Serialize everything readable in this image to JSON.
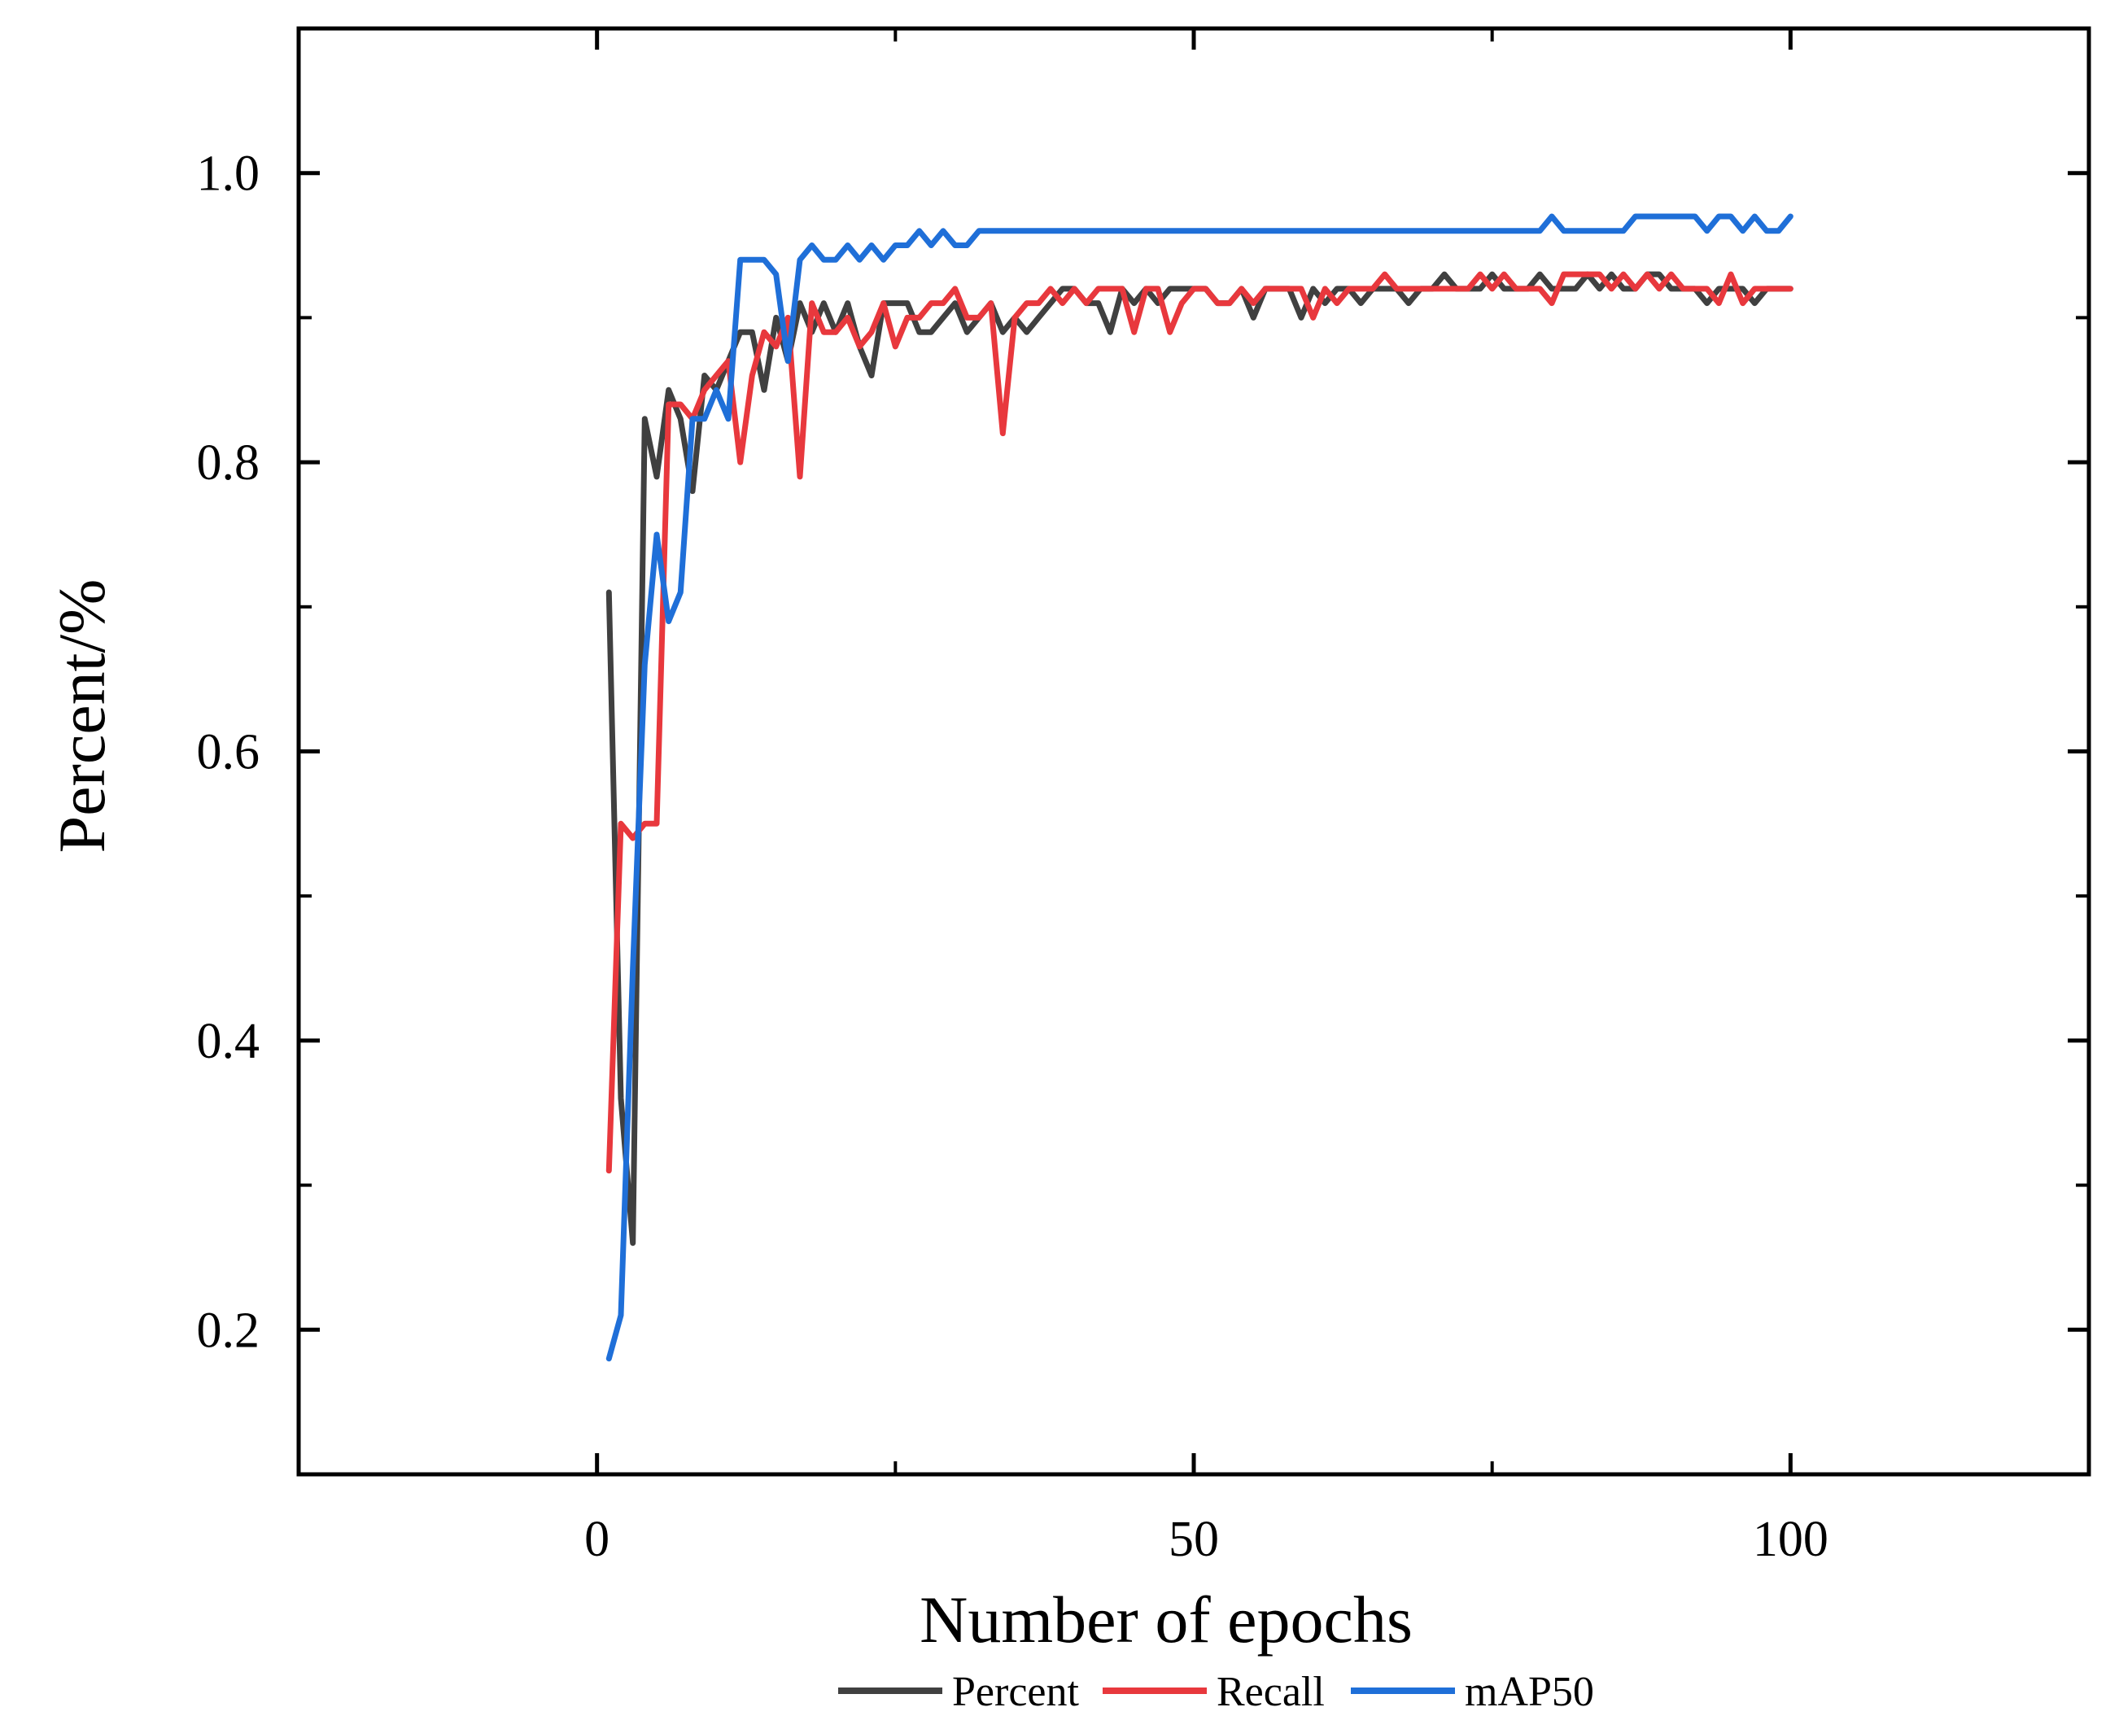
{
  "chart_data": {
    "type": "line",
    "xlabel": "Number of epochs",
    "ylabel": "Percent/%",
    "xlim": [
      -25,
      125
    ],
    "ylim": [
      0.1,
      1.1
    ],
    "x_ticks_labeled": [
      0,
      50,
      100
    ],
    "x_tick_labels": [
      "0",
      "50",
      "100"
    ],
    "x_ticks_minor": [
      25,
      75
    ],
    "y_ticks_labeled": [
      0.2,
      0.4,
      0.6,
      0.8,
      1.0
    ],
    "y_tick_labels": [
      "0.2",
      "0.4",
      "0.6",
      "0.8",
      "1.0"
    ],
    "y_ticks_minor": [
      0.3,
      0.5,
      0.7,
      0.9
    ],
    "grid": false,
    "legend_position": "bottom-center",
    "x": [
      1,
      2,
      3,
      4,
      5,
      6,
      7,
      8,
      9,
      10,
      11,
      12,
      13,
      14,
      15,
      16,
      17,
      18,
      19,
      20,
      21,
      22,
      23,
      24,
      25,
      26,
      27,
      28,
      29,
      30,
      31,
      32,
      33,
      34,
      35,
      36,
      37,
      38,
      39,
      40,
      41,
      42,
      43,
      44,
      45,
      46,
      47,
      48,
      49,
      50,
      51,
      52,
      53,
      54,
      55,
      56,
      57,
      58,
      59,
      60,
      61,
      62,
      63,
      64,
      65,
      66,
      67,
      68,
      69,
      70,
      71,
      72,
      73,
      74,
      75,
      76,
      77,
      78,
      79,
      80,
      81,
      82,
      83,
      84,
      85,
      86,
      87,
      88,
      89,
      90,
      91,
      92,
      93,
      94,
      95,
      96,
      97,
      98,
      99,
      100
    ],
    "series": [
      {
        "name": "Percent",
        "color": "#404040",
        "values": [
          0.71,
          0.36,
          0.26,
          0.83,
          0.79,
          0.85,
          0.83,
          0.78,
          0.86,
          0.85,
          0.87,
          0.89,
          0.89,
          0.85,
          0.9,
          0.87,
          0.91,
          0.89,
          0.91,
          0.89,
          0.91,
          0.88,
          0.86,
          0.91,
          0.91,
          0.91,
          0.89,
          0.89,
          0.9,
          0.91,
          0.89,
          0.9,
          0.91,
          0.89,
          0.9,
          0.89,
          0.9,
          0.91,
          0.92,
          0.92,
          0.91,
          0.91,
          0.89,
          0.92,
          0.91,
          0.92,
          0.91,
          0.92,
          0.92,
          0.92,
          0.92,
          0.91,
          0.91,
          0.92,
          0.9,
          0.92,
          0.92,
          0.92,
          0.9,
          0.92,
          0.91,
          0.92,
          0.92,
          0.91,
          0.92,
          0.92,
          0.92,
          0.91,
          0.92,
          0.92,
          0.93,
          0.92,
          0.92,
          0.92,
          0.93,
          0.92,
          0.92,
          0.92,
          0.93,
          0.92,
          0.92,
          0.92,
          0.93,
          0.92,
          0.93,
          0.92,
          0.92,
          0.93,
          0.93,
          0.92,
          0.92,
          0.92,
          0.91,
          0.92,
          0.92,
          0.92,
          0.91,
          0.92,
          0.92,
          0.92
        ]
      },
      {
        "name": "Recall",
        "color": "#e8383d",
        "values": [
          0.31,
          0.55,
          0.54,
          0.55,
          0.55,
          0.84,
          0.84,
          0.83,
          0.85,
          0.86,
          0.87,
          0.8,
          0.86,
          0.89,
          0.88,
          0.9,
          0.79,
          0.91,
          0.89,
          0.89,
          0.9,
          0.88,
          0.89,
          0.91,
          0.88,
          0.9,
          0.9,
          0.91,
          0.91,
          0.92,
          0.9,
          0.9,
          0.91,
          0.82,
          0.9,
          0.91,
          0.91,
          0.92,
          0.91,
          0.92,
          0.91,
          0.92,
          0.92,
          0.92,
          0.89,
          0.92,
          0.92,
          0.89,
          0.91,
          0.92,
          0.92,
          0.91,
          0.91,
          0.92,
          0.91,
          0.92,
          0.92,
          0.92,
          0.92,
          0.9,
          0.92,
          0.91,
          0.92,
          0.92,
          0.92,
          0.93,
          0.92,
          0.92,
          0.92,
          0.92,
          0.92,
          0.92,
          0.92,
          0.93,
          0.92,
          0.93,
          0.92,
          0.92,
          0.92,
          0.91,
          0.93,
          0.93,
          0.93,
          0.93,
          0.92,
          0.93,
          0.92,
          0.93,
          0.92,
          0.93,
          0.92,
          0.92,
          0.92,
          0.91,
          0.93,
          0.91,
          0.92,
          0.92,
          0.92,
          0.92
        ]
      },
      {
        "name": "mAP50",
        "color": "#1f6fd8",
        "values": [
          0.18,
          0.21,
          0.45,
          0.66,
          0.75,
          0.69,
          0.71,
          0.83,
          0.83,
          0.85,
          0.83,
          0.94,
          0.94,
          0.94,
          0.93,
          0.87,
          0.94,
          0.95,
          0.94,
          0.94,
          0.95,
          0.94,
          0.95,
          0.94,
          0.95,
          0.95,
          0.96,
          0.95,
          0.96,
          0.95,
          0.95,
          0.96,
          0.96,
          0.96,
          0.96,
          0.96,
          0.96,
          0.96,
          0.96,
          0.96,
          0.96,
          0.96,
          0.96,
          0.96,
          0.96,
          0.96,
          0.96,
          0.96,
          0.96,
          0.96,
          0.96,
          0.96,
          0.96,
          0.96,
          0.96,
          0.96,
          0.96,
          0.96,
          0.96,
          0.96,
          0.96,
          0.96,
          0.96,
          0.96,
          0.96,
          0.96,
          0.96,
          0.96,
          0.96,
          0.96,
          0.96,
          0.96,
          0.96,
          0.96,
          0.96,
          0.96,
          0.96,
          0.96,
          0.96,
          0.97,
          0.96,
          0.96,
          0.96,
          0.96,
          0.96,
          0.96,
          0.97,
          0.97,
          0.97,
          0.97,
          0.97,
          0.97,
          0.96,
          0.97,
          0.97,
          0.96,
          0.97,
          0.96,
          0.96,
          0.97
        ]
      }
    ]
  }
}
